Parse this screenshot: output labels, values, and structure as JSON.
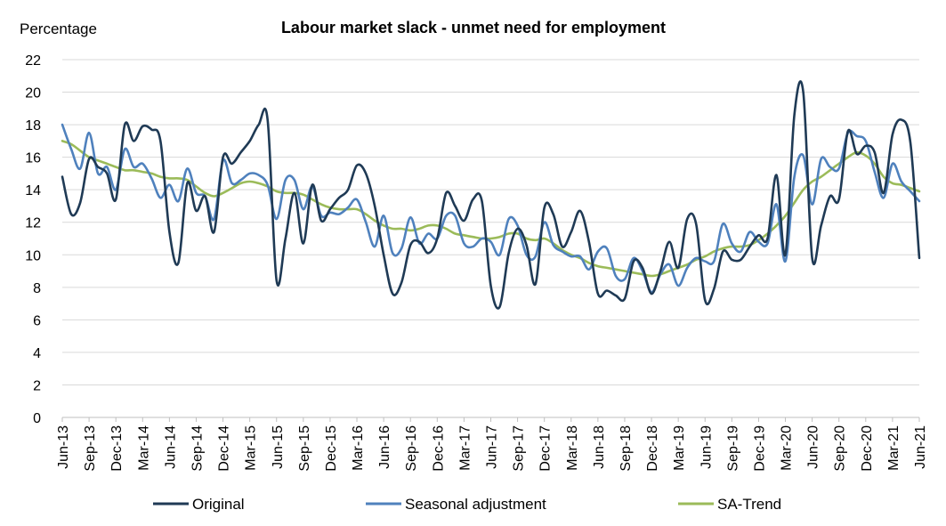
{
  "chart_data": {
    "type": "line",
    "title": "Labour market slack - unmet need for employment",
    "ylabel": "Percentage",
    "xlabel": "",
    "ylim": [
      0,
      22
    ],
    "yticks": [
      0,
      2,
      4,
      6,
      8,
      10,
      12,
      14,
      16,
      18,
      20,
      22
    ],
    "grid": "horizontal",
    "legend": "bottom",
    "x_tick_labels": [
      "Jun-13",
      "Sep-13",
      "Dec-13",
      "Mar-14",
      "Jun-14",
      "Sep-14",
      "Dec-14",
      "Mar-15",
      "Jun-15",
      "Sep-15",
      "Dec-15",
      "Mar-16",
      "Jun-16",
      "Sep-16",
      "Dec-16",
      "Mar-17",
      "Jun-17",
      "Sep-17",
      "Dec-17",
      "Mar-18",
      "Jun-18",
      "Sep-18",
      "Dec-18",
      "Mar-19",
      "Jun-19",
      "Sep-19",
      "Dec-19",
      "Mar-20",
      "Jun-20",
      "Sep-20",
      "Dec-20",
      "Mar-21",
      "Jun-21"
    ],
    "series": [
      {
        "name": "Original",
        "color": "#1f3a55",
        "values": [
          14.8,
          12.5,
          13.2,
          15.9,
          15.4,
          15.0,
          13.4,
          18.0,
          17.0,
          17.9,
          17.7,
          17.0,
          11.4,
          9.5,
          14.4,
          12.7,
          13.6,
          11.4,
          16.0,
          15.6,
          16.3,
          17.0,
          18.0,
          18.3,
          8.4,
          11.0,
          13.8,
          10.7,
          14.3,
          12.1,
          12.8,
          13.5,
          14.0,
          15.5,
          15.0,
          13.0,
          10.0,
          7.6,
          8.3,
          10.6,
          10.8,
          10.1,
          11.0,
          13.8,
          13.0,
          12.1,
          13.4,
          13.3,
          8.1,
          6.8,
          10.1,
          11.6,
          10.6,
          8.2,
          12.9,
          12.5,
          10.5,
          11.4,
          12.7,
          10.8,
          7.6,
          7.8,
          7.5,
          7.3,
          9.6,
          9.2,
          7.6,
          9.0,
          10.8,
          9.2,
          12.2,
          11.9,
          7.2,
          7.9,
          10.2,
          9.7,
          9.7,
          10.5,
          11.2,
          11.0,
          14.9,
          10.0,
          18.6,
          20.0,
          9.8,
          11.8,
          13.6,
          13.4,
          17.6,
          16.2,
          16.7,
          16.3,
          13.8,
          17.4,
          18.3,
          16.9,
          9.8
        ]
      },
      {
        "name": "Seasonal adjustment",
        "color": "#4f81bd",
        "values": [
          18.0,
          16.5,
          15.3,
          17.5,
          15.0,
          15.4,
          14.0,
          16.5,
          15.4,
          15.6,
          14.7,
          13.5,
          14.3,
          13.3,
          15.3,
          13.8,
          13.6,
          12.2,
          15.8,
          14.4,
          14.6,
          15.0,
          14.9,
          14.3,
          12.2,
          14.6,
          14.6,
          12.8,
          14.2,
          12.4,
          12.6,
          12.5,
          12.9,
          13.4,
          12.0,
          10.5,
          12.4,
          10.1,
          10.4,
          12.3,
          10.7,
          11.3,
          11.0,
          12.4,
          12.4,
          10.7,
          10.5,
          11.0,
          10.8,
          10.0,
          12.2,
          11.8,
          10.0,
          9.9,
          12.0,
          10.6,
          10.2,
          9.9,
          9.9,
          9.1,
          10.2,
          10.4,
          8.7,
          8.5,
          9.8,
          9.0,
          7.7,
          8.8,
          9.4,
          8.1,
          9.2,
          9.8,
          9.6,
          9.6,
          11.9,
          10.7,
          10.2,
          11.4,
          10.8,
          10.7,
          13.1,
          9.6,
          14.8,
          16.1,
          13.1,
          15.9,
          15.4,
          15.3,
          17.5,
          17.3,
          17.0,
          15.1,
          13.5,
          15.6,
          14.5,
          13.9,
          13.3
        ]
      },
      {
        "name": "SA-Trend",
        "color": "#9bbb59",
        "values": [
          17.0,
          16.8,
          16.4,
          16.0,
          15.8,
          15.6,
          15.4,
          15.2,
          15.2,
          15.1,
          15.0,
          14.8,
          14.7,
          14.7,
          14.6,
          14.2,
          13.8,
          13.6,
          13.8,
          14.1,
          14.4,
          14.5,
          14.4,
          14.2,
          13.9,
          13.8,
          13.8,
          13.7,
          13.4,
          13.1,
          12.9,
          12.8,
          12.8,
          12.8,
          12.5,
          12.1,
          11.8,
          11.6,
          11.6,
          11.5,
          11.6,
          11.8,
          11.8,
          11.6,
          11.3,
          11.2,
          11.1,
          11.0,
          11.0,
          11.1,
          11.3,
          11.3,
          11.0,
          10.9,
          11.0,
          10.7,
          10.3,
          10.0,
          9.8,
          9.5,
          9.3,
          9.2,
          9.1,
          9.0,
          8.9,
          8.8,
          8.7,
          8.8,
          9.0,
          9.2,
          9.4,
          9.7,
          9.9,
          10.2,
          10.4,
          10.5,
          10.5,
          10.6,
          10.9,
          11.3,
          11.8,
          12.4,
          13.2,
          14.0,
          14.5,
          14.8,
          15.2,
          15.6,
          16.0,
          16.3,
          16.1,
          15.6,
          14.8,
          14.4,
          14.3,
          14.1,
          13.9
        ]
      }
    ]
  }
}
